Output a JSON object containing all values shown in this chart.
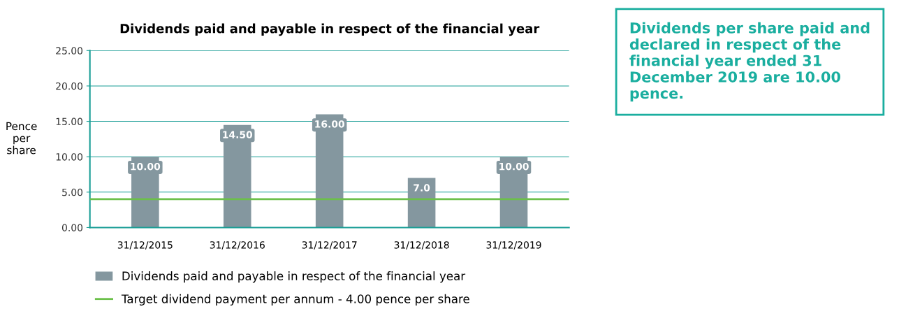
{
  "chart_data": {
    "type": "bar",
    "title": "Dividends paid and payable in respect of the financial year",
    "ylabel": "Pence\nper\nshare",
    "categories": [
      "31/12/2015",
      "31/12/2016",
      "31/12/2017",
      "31/12/2018",
      "31/12/2019"
    ],
    "series": [
      {
        "name": "Dividends paid and payable in respect of the financial year",
        "color": "#84979f",
        "values": [
          10,
          14.5,
          16,
          7,
          10
        ],
        "value_labels": [
          "10.00",
          "14.50",
          "16.00",
          "7.0",
          "10.00"
        ]
      }
    ],
    "ylim": [
      0,
      25
    ],
    "yticks": [
      {
        "value": 0,
        "label": "0.00"
      },
      {
        "value": 5,
        "label": "5.00"
      },
      {
        "value": 10,
        "label": "10.00"
      },
      {
        "value": 15,
        "label": "15.00"
      },
      {
        "value": 20,
        "label": "20.00"
      },
      {
        "value": 25,
        "label": "25.00"
      }
    ],
    "grid": "y",
    "legend": "bottom",
    "ref_lines": [
      {
        "axis": "y",
        "value": 4,
        "label": "Target dividend payment per annum - 4.00 pence per share",
        "color": "#6cc04a",
        "line_style": "solid"
      }
    ],
    "annotations": [
      "Dividends per share paid and declared in respect of the financial year ended 31 December 2019 are 10.00 pence."
    ]
  }
}
